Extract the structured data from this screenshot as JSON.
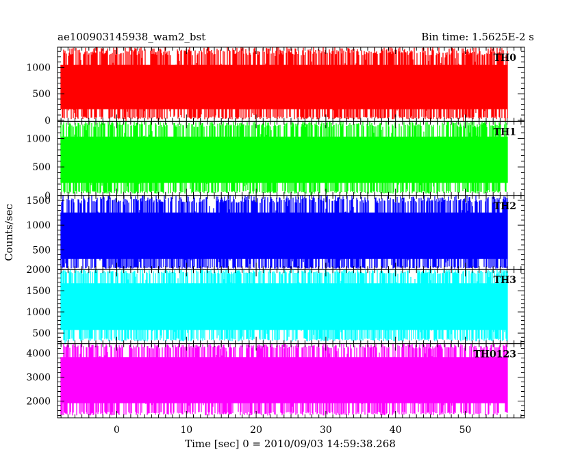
{
  "header": {
    "title": "ae100903145938_wam2_bst",
    "bin_time": "Bin time: 1.5625E-2 s"
  },
  "colors": {
    "TH0": "#ff0000",
    "TH1": "#00ff00",
    "TH2": "#0000ff",
    "TH3": "#00ffff",
    "TH0123": "#ff00ff"
  },
  "chart_data": {
    "type": "line",
    "title": "ae100903145938_wam2_bst",
    "subtitle": "Bin time: 1.5625E-2 s",
    "xlabel": "Time [sec] 0 = 2010/09/03 14:59:38.268",
    "ylabel": "Counts/sec",
    "xlim": [
      -8.5,
      58.5
    ],
    "x_range_data": [
      -8,
      56
    ],
    "x_ticks": [
      0,
      10,
      20,
      30,
      40,
      50
    ],
    "grid": false,
    "panels": [
      {
        "name": "TH0",
        "ylim": [
          -20,
          1380
        ],
        "y_ticks": [
          0,
          500,
          1000
        ],
        "mean": 620,
        "lower_env": 70,
        "upper_env": 1230,
        "peak_max": 1380
      },
      {
        "name": "TH1",
        "ylim": [
          0,
          1300
        ],
        "y_ticks": [
          0,
          500,
          1000
        ],
        "mean": 640,
        "lower_env": 80,
        "upper_env": 1200,
        "peak_max": 1300
      },
      {
        "name": "TH2",
        "ylim": [
          100,
          1600
        ],
        "y_ticks": [
          500,
          1000,
          1500
        ],
        "mean": 800,
        "lower_env": 150,
        "upper_env": 1450,
        "peak_max": 1600
      },
      {
        "name": "TH3",
        "ylim": [
          250,
          2000
        ],
        "y_ticks": [
          500,
          1000,
          1500,
          2000
        ],
        "mean": 1150,
        "lower_env": 380,
        "upper_env": 1900,
        "peak_max": 2000
      },
      {
        "name": "TH0123",
        "ylim": [
          1300,
          4400
        ],
        "y_ticks": [
          2000,
          3000,
          4000
        ],
        "mean": 3000,
        "lower_env": 1550,
        "upper_env": 4200,
        "peak_max": 4400
      }
    ]
  }
}
